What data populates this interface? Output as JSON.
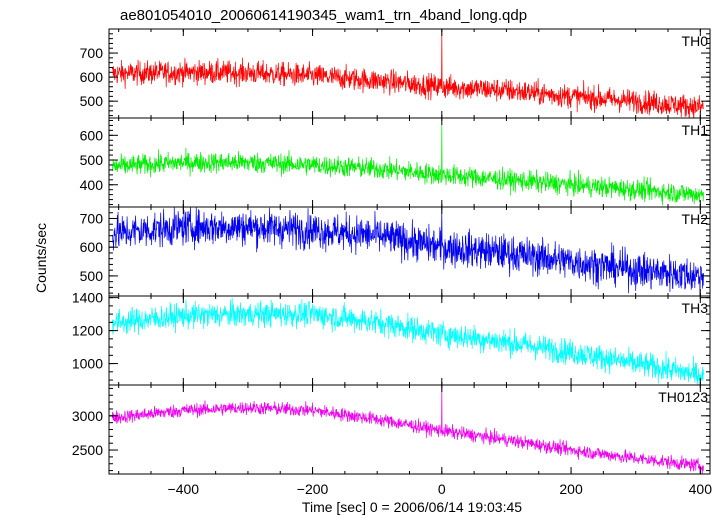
{
  "chart_data": {
    "type": "line",
    "title": "ae801054010_20060614190345_wam1_trn_4band_long.qdp",
    "xlabel": "Time [sec] 0 = 2006/06/14 19:03:45",
    "ylabel": "Counts/sec",
    "xlim": [
      -515,
      415
    ],
    "x_ticks": [
      -400,
      -200,
      0,
      200,
      400
    ],
    "x_tick_labels": [
      "−400",
      "−200",
      "0",
      "200",
      "400"
    ],
    "grid": false,
    "panels": [
      {
        "name": "TH0",
        "color": "#ff0000",
        "ylim": [
          430,
          800
        ],
        "y_ticks": [
          500,
          600,
          700
        ],
        "y_tick_labels": [
          "500",
          "600",
          "700"
        ],
        "trend_x": [
          -500,
          -400,
          -300,
          -200,
          -100,
          0,
          100,
          200,
          300,
          400
        ],
        "trend_y": [
          615,
          620,
          618,
          605,
          585,
          560,
          545,
          520,
          500,
          475
        ],
        "noise": 35,
        "spike": {
          "x": 0,
          "y": 800
        }
      },
      {
        "name": "TH1",
        "color": "#00ee00",
        "ylim": [
          310,
          670
        ],
        "y_ticks": [
          400,
          500,
          600
        ],
        "y_tick_labels": [
          "400",
          "500",
          "600"
        ],
        "trend_x": [
          -500,
          -400,
          -300,
          -200,
          -100,
          0,
          100,
          200,
          300,
          400
        ],
        "trend_y": [
          475,
          490,
          490,
          480,
          465,
          440,
          420,
          400,
          380,
          360
        ],
        "noise": 30,
        "spike": {
          "x": 0,
          "y": 650
        }
      },
      {
        "name": "TH2",
        "color": "#0000ee",
        "ylim": [
          430,
          740
        ],
        "y_ticks": [
          500,
          600,
          700
        ],
        "y_tick_labels": [
          "500",
          "600",
          "700"
        ],
        "trend_x": [
          -500,
          -400,
          -300,
          -200,
          -100,
          0,
          100,
          200,
          300,
          400
        ],
        "trend_y": [
          650,
          670,
          670,
          660,
          640,
          600,
          580,
          550,
          520,
          500
        ],
        "noise": 45,
        "spike": {
          "x": 0,
          "y": 730
        }
      },
      {
        "name": "TH3",
        "color": "#00ffff",
        "ylim": [
          870,
          1410
        ],
        "y_ticks": [
          1000,
          1200,
          1400
        ],
        "y_tick_labels": [
          "1000",
          "1200",
          "1400"
        ],
        "trend_x": [
          -500,
          -400,
          -300,
          -200,
          -100,
          0,
          100,
          200,
          300,
          400
        ],
        "trend_y": [
          1250,
          1290,
          1300,
          1300,
          1250,
          1180,
          1130,
          1070,
          1000,
          930
        ],
        "noise": 55,
        "spike": null
      },
      {
        "name": "TH0123",
        "color": "#ee00ee",
        "ylim": [
          2150,
          3450
        ],
        "y_ticks": [
          2500,
          3000
        ],
        "y_tick_labels": [
          "2500",
          "3000"
        ],
        "trend_x": [
          -500,
          -400,
          -300,
          -200,
          -100,
          0,
          100,
          200,
          300,
          400
        ],
        "trend_y": [
          2980,
          3080,
          3120,
          3080,
          2950,
          2780,
          2650,
          2500,
          2380,
          2270
        ],
        "noise": 70,
        "spike": {
          "x": 0,
          "y": 3450
        }
      }
    ]
  }
}
